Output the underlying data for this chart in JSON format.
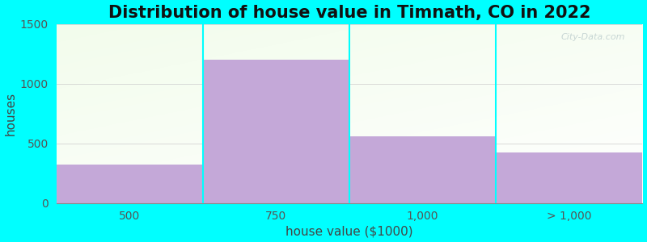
{
  "title": "Distribution of house value in Timnath, CO in 2022",
  "xlabel": "house value ($1000)",
  "ylabel": "houses",
  "categories": [
    "500",
    "750",
    "1,000",
    "> 1,000"
  ],
  "values": [
    320,
    1200,
    560,
    420
  ],
  "bar_color": "#C4A8D8",
  "bar_edgecolor": "#C4A8D8",
  "background_color": "#00FFFF",
  "ylim": [
    0,
    1500
  ],
  "yticks": [
    0,
    500,
    1000,
    1500
  ],
  "title_fontsize": 15,
  "axis_label_fontsize": 11,
  "tick_fontsize": 10,
  "watermark": "City-Data.com"
}
